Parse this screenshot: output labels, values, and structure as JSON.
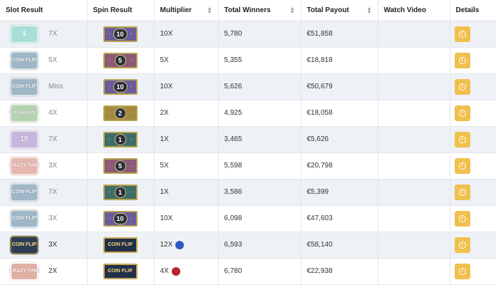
{
  "headers": {
    "slot_result": "Slot Result",
    "spin_result": "Spin Result",
    "multiplier": "Multiplier",
    "total_winners": "Total Winners",
    "total_payout": "Total Payout",
    "watch_video": "Watch Video",
    "details": "Details"
  },
  "colors": {
    "info_button": "#f0c04e",
    "blue_dot": "#2f56c4",
    "red_dot": "#b72330",
    "row_stripe": "#eef1f5"
  },
  "rows": [
    {
      "slot_label": "1",
      "slot_kind": "slot-1",
      "slot_mult": "7X",
      "spin_label": "10",
      "spin_kind": "t-10",
      "multiplier": "10X",
      "winners": "5,780",
      "payout": "€51,858"
    },
    {
      "slot_label": "COIN FLIP",
      "slot_kind": "slot-coinflip",
      "slot_mult": "5X",
      "spin_label": "5",
      "spin_kind": "t-5",
      "multiplier": "5X",
      "winners": "5,355",
      "payout": "€18,818"
    },
    {
      "slot_label": "COIN FLIP",
      "slot_kind": "slot-coinflip",
      "slot_mult": "Miss",
      "spin_label": "10",
      "spin_kind": "t-10",
      "multiplier": "10X",
      "winners": "5,626",
      "payout": "€50,679"
    },
    {
      "slot_label": "CASH HUNT",
      "slot_kind": "slot-cashhunt",
      "slot_mult": "4X",
      "spin_label": "2",
      "spin_kind": "t-2",
      "multiplier": "2X",
      "winners": "4,925",
      "payout": "€18,058"
    },
    {
      "slot_label": "10",
      "slot_kind": "slot-10",
      "slot_mult": "7X",
      "spin_label": "1",
      "spin_kind": "t-1",
      "multiplier": "1X",
      "winners": "3,465",
      "payout": "€5,626"
    },
    {
      "slot_label": "CRAZY TIME",
      "slot_kind": "slot-crazy",
      "slot_mult": "3X",
      "spin_label": "5",
      "spin_kind": "t-5",
      "multiplier": "5X",
      "winners": "5,598",
      "payout": "€20,798"
    },
    {
      "slot_label": "COIN FLIP",
      "slot_kind": "slot-coinflip",
      "slot_mult": "7X",
      "spin_label": "1",
      "spin_kind": "t-1",
      "multiplier": "1X",
      "winners": "3,586",
      "payout": "€5,399"
    },
    {
      "slot_label": "COIN FLIP",
      "slot_kind": "slot-coinflip",
      "slot_mult": "3X",
      "spin_label": "10",
      "spin_kind": "t-10",
      "multiplier": "10X",
      "winners": "6,098",
      "payout": "€47,603"
    },
    {
      "slot_label": "COIN FLIP",
      "slot_kind": "slot-coinflip dark",
      "slot_mult": "3X",
      "spin_label": "COIN FLIP",
      "spin_kind": "t-coinflip",
      "multiplier": "12X",
      "dot": "blue",
      "winners": "6,593",
      "payout": "€58,140"
    },
    {
      "slot_label": "CRAZY TIME",
      "slot_kind": "slot-crazy dark",
      "slot_mult": "2X",
      "spin_label": "COIN FLIP",
      "spin_kind": "t-coinflip",
      "multiplier": "4X",
      "dot": "red",
      "winners": "6,780",
      "payout": "€22,938"
    }
  ]
}
